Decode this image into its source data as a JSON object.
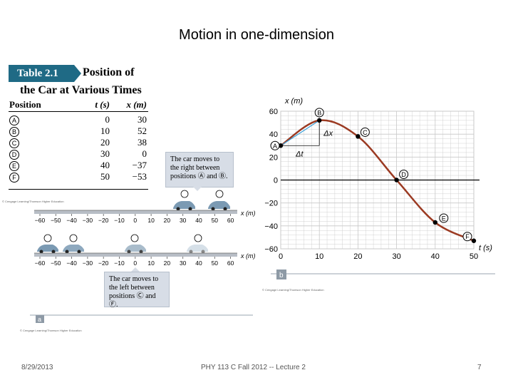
{
  "slide": {
    "title": "Motion in one-dimension",
    "footer_date": "8/29/2013",
    "footer_course": "PHY 113 C Fall 2012 -- Lecture 2",
    "footer_page": "7"
  },
  "table": {
    "badge": "Table 2.1",
    "title_line1": "Position of",
    "title_line2": "the Car at Various Times",
    "headers": [
      "Position",
      "t (s)",
      "x (m)"
    ],
    "rows": [
      {
        "pos": "A",
        "t": "0",
        "x": "30"
      },
      {
        "pos": "B",
        "t": "10",
        "x": "52"
      },
      {
        "pos": "C",
        "t": "20",
        "x": "38"
      },
      {
        "pos": "D",
        "t": "30",
        "x": "0"
      },
      {
        "pos": "E",
        "t": "40",
        "x": "−37"
      },
      {
        "pos": "F",
        "t": "50",
        "x": "−53"
      }
    ],
    "copyright": "© Cengage Learning/Thomson Higher Education"
  },
  "diagram_a": {
    "callout_right": "The car moves to the right between positions Ⓐ and Ⓑ.",
    "callout_left": "The car moves to the left between positions Ⓒ and Ⓕ.",
    "axis_ticks": [
      "−60",
      "−50",
      "−40",
      "−30",
      "−20",
      "−10",
      "0",
      "10",
      "20",
      "30",
      "40",
      "50",
      "60"
    ],
    "axis_unit": "x (m)",
    "label": "a",
    "copyright": "© Cengage Learning/Thomson Higher Education"
  },
  "chart_data": {
    "type": "line",
    "xlabel": "t (s)",
    "ylabel": "x (m)",
    "xlim": [
      0,
      50
    ],
    "ylim": [
      -60,
      60
    ],
    "xticks": [
      "0",
      "10",
      "20",
      "30",
      "40",
      "50"
    ],
    "yticks": [
      "60",
      "40",
      "20",
      "0",
      "−20",
      "−40",
      "−60"
    ],
    "grid": true,
    "points": [
      {
        "label": "A",
        "t": 0,
        "x": 30
      },
      {
        "label": "B",
        "t": 10,
        "x": 52
      },
      {
        "label": "C",
        "t": 20,
        "x": 38
      },
      {
        "label": "D",
        "t": 30,
        "x": 0
      },
      {
        "label": "E",
        "t": 40,
        "x": -37
      },
      {
        "label": "F",
        "t": 50,
        "x": -53
      }
    ],
    "annotations": [
      "Δx",
      "Δt"
    ],
    "panel_label": "b",
    "copyright": "© Cengage Learning/Thomson Higher Education",
    "colors": {
      "curve": "#9b3a22",
      "tangent": "#3aa0d8",
      "grid": "#c8c8c8"
    }
  }
}
